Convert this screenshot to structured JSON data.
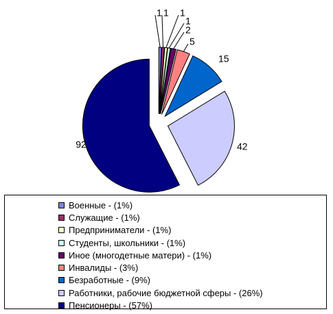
{
  "chart_data": {
    "type": "pie",
    "title": "",
    "exploded": true,
    "legend_position": "bottom",
    "slices": [
      {
        "label": "Военные - (1%)",
        "value": 1,
        "data_label": "1",
        "color": "#8080ff"
      },
      {
        "label": "Служащие - (1%)",
        "value": 1,
        "data_label": "1",
        "color": "#993366"
      },
      {
        "label": "Предприниматели - (1%)",
        "value": 1,
        "data_label": "1",
        "color": "#ffffcc"
      },
      {
        "label": "Студенты, школьники - (1%)",
        "value": 1,
        "data_label": "1",
        "color": "#ccffff"
      },
      {
        "label": "Иное (многодетные матери) - (1%)",
        "value": 2,
        "data_label": "2",
        "color": "#660066"
      },
      {
        "label": "Инвалиды - (3%)",
        "value": 5,
        "data_label": "5",
        "color": "#ff8080"
      },
      {
        "label": "Безработные - (9%)",
        "value": 15,
        "data_label": "15",
        "color": "#0066cc"
      },
      {
        "label": "Работники, рабочие бюджетной сферы - (26%)",
        "value": 42,
        "data_label": "42",
        "color": "#ccccff"
      },
      {
        "label": "Пенсионеры - (57%)",
        "value": 92,
        "data_label": "92",
        "color": "#000080"
      }
    ]
  }
}
